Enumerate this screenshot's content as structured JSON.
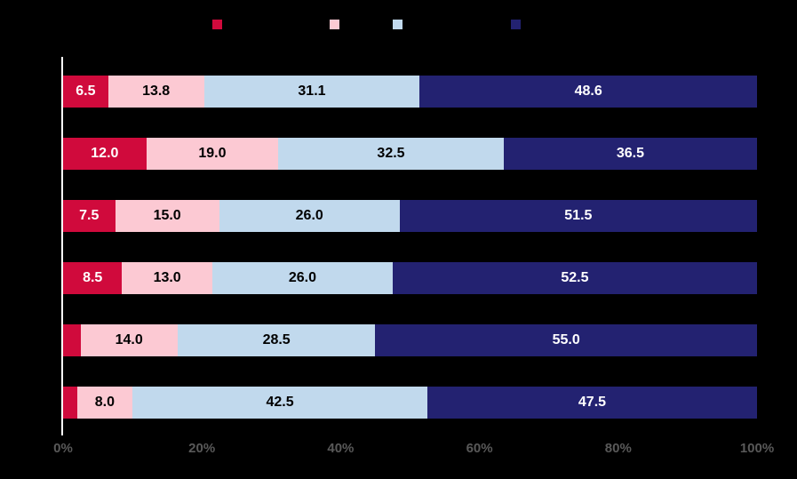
{
  "colors": {
    "background": "#000000",
    "axis_line": "#ffffff",
    "tick_label": "#595959"
  },
  "chart_data": {
    "type": "bar",
    "orientation": "horizontal",
    "stacked": true,
    "title": "",
    "xlabel": "",
    "ylabel": "",
    "xlim": [
      0,
      100
    ],
    "x_ticks": [
      "0%",
      "20%",
      "40%",
      "60%",
      "80%",
      "100%"
    ],
    "grid": false,
    "legend_position": "top",
    "categories": [
      "",
      "",
      "",
      "",
      "",
      ""
    ],
    "series": [
      {
        "name": "",
        "color": "#d00a3c",
        "text_color": "#ffffff",
        "values": [
          6.5,
          12.0,
          7.5,
          8.5,
          2.5,
          2.0
        ],
        "labels": [
          "6.5",
          "12.0",
          "7.5",
          "8.5",
          "",
          ""
        ]
      },
      {
        "name": "",
        "color": "#fcc9d3",
        "text_color": "#000000",
        "values": [
          13.8,
          19.0,
          15.0,
          13.0,
          14.0,
          8.0
        ],
        "labels": [
          "13.8",
          "19.0",
          "15.0",
          "13.0",
          "14.0",
          "8.0"
        ]
      },
      {
        "name": "",
        "color": "#c1d9ed",
        "text_color": "#000000",
        "values": [
          31.1,
          32.5,
          26.0,
          26.0,
          28.5,
          42.5
        ],
        "labels": [
          "31.1",
          "32.5",
          "26.0",
          "26.0",
          "28.5",
          "42.5"
        ]
      },
      {
        "name": "",
        "color": "#232271",
        "text_color": "#ffffff",
        "values": [
          48.6,
          36.5,
          51.5,
          52.5,
          55.0,
          47.5
        ],
        "labels": [
          "48.6",
          "36.5",
          "51.5",
          "52.5",
          "55.0",
          "47.5"
        ]
      }
    ]
  }
}
